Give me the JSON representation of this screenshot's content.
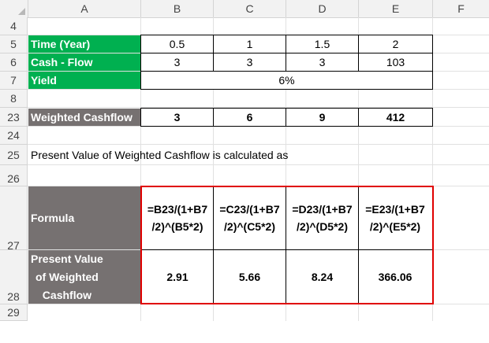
{
  "columns": [
    "A",
    "B",
    "C",
    "D",
    "E",
    "F"
  ],
  "rows": [
    "4",
    "5",
    "6",
    "7",
    "8",
    "23",
    "24",
    "25",
    "26",
    "27",
    "28",
    "29"
  ],
  "table1": {
    "time_label": "Time (Year)",
    "time_values": [
      "0.5",
      "1",
      "1.5",
      "2"
    ],
    "cash_label": "Cash - Flow",
    "cash_values": [
      "3",
      "3",
      "3",
      "103"
    ],
    "yield_label": "Yield",
    "yield_value": "6%"
  },
  "weighted": {
    "label": "Weighted Cashflow",
    "values": [
      "3",
      "6",
      "9",
      "412"
    ]
  },
  "note": "Present Value of Weighted Cashflow is calculated as",
  "formula": {
    "label": "Formula",
    "values": [
      "=B23/(1+B7\n/2)^(B5*2)",
      "=C23/(1+B7\n/2)^(C5*2)",
      "=D23/(1+B7\n/2)^(D5*2)",
      "=E23/(1+B7\n/2)^(E5*2)"
    ]
  },
  "pv": {
    "label": "Present Value\nof Weighted\nCashflow",
    "values": [
      "2.91",
      "5.66",
      "8.24",
      "366.06"
    ]
  },
  "colors": {
    "green": "#00b050",
    "grey": "#767171",
    "highlight_border": "#e00000"
  }
}
